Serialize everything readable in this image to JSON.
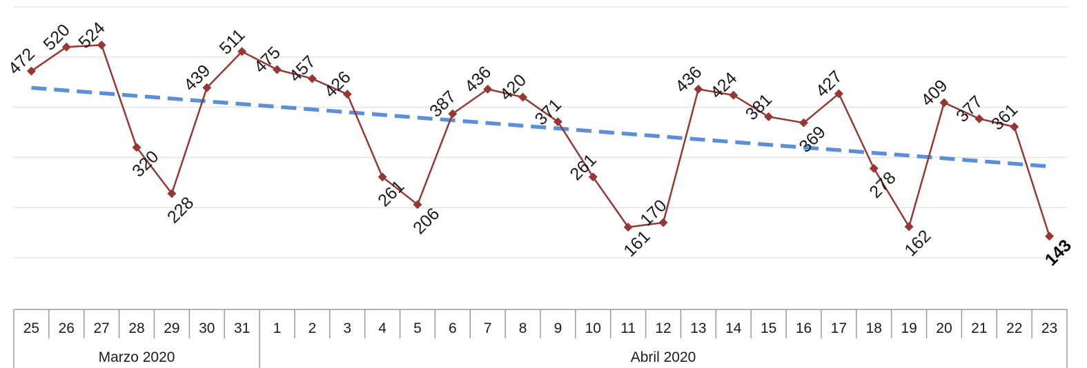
{
  "chart_data": {
    "type": "line",
    "title": "",
    "xlabel": "",
    "ylabel": "",
    "grid": true,
    "categories": [
      "25",
      "26",
      "27",
      "28",
      "29",
      "30",
      "31",
      "1",
      "2",
      "3",
      "4",
      "5",
      "6",
      "7",
      "8",
      "9",
      "10",
      "11",
      "12",
      "13",
      "14",
      "15",
      "16",
      "17",
      "18",
      "19",
      "20",
      "21",
      "22",
      "23"
    ],
    "groups": [
      {
        "label": "Marzo 2020",
        "count": 7
      },
      {
        "label": "Abril 2020",
        "count": 23
      }
    ],
    "series": [
      {
        "values": [
          472,
          520,
          524,
          320,
          228,
          439,
          511,
          475,
          457,
          426,
          261,
          206,
          387,
          436,
          420,
          371,
          261,
          161,
          170,
          436,
          424,
          381,
          369,
          427,
          278,
          162,
          409,
          377,
          361,
          143
        ],
        "labels": [
          "472",
          "520",
          "524",
          "320",
          "228",
          "439",
          "511",
          "475",
          "457",
          "426",
          "261",
          "206",
          "387",
          "436",
          "420",
          "371",
          "261",
          "161",
          "170",
          "436",
          "424",
          "381",
          "369",
          "427",
          "278",
          "162",
          "409",
          "377",
          "361",
          "143"
        ],
        "color": "#953735",
        "marker": "diamond"
      }
    ],
    "trendline": {
      "type": "linear",
      "style": "dashed",
      "color": "#5b8fd9"
    },
    "ylim": [
      100,
      600
    ],
    "colors": {
      "series": "#953735",
      "trend": "#5b8fd9",
      "grid": "#d9d9d9"
    }
  }
}
